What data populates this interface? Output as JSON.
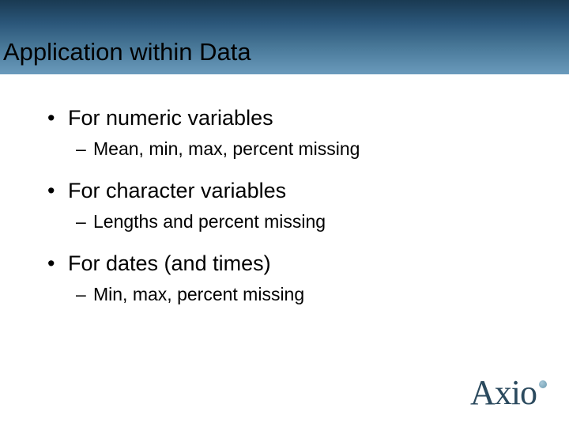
{
  "slide": {
    "title": "Application within Data",
    "header_gradient": [
      "#1a3a52",
      "#2a5578",
      "#4a7a9a",
      "#6a9abc"
    ],
    "background_color": "#ffffff",
    "bullets": [
      {
        "text": "For numeric variables",
        "sub": "Mean, min, max, percent missing"
      },
      {
        "text": "For character variables",
        "sub": "Lengths and percent missing"
      },
      {
        "text": "For dates (and times)",
        "sub": "Min, max, percent missing"
      }
    ],
    "title_fontsize": 31,
    "bullet_fontsize": 27,
    "sub_bullet_fontsize": 23,
    "text_color": "#000000"
  },
  "logo": {
    "text": "Axio",
    "color": "#2b4a5e",
    "dot_color": "#6a9ab0",
    "fontsize": 44
  }
}
